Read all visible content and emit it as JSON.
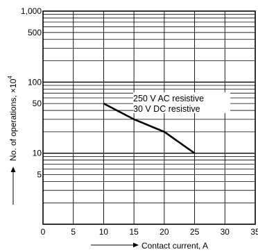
{
  "chart_data": {
    "type": "line",
    "xlabel": "Contact current, A",
    "ylabel": "No. of operations, ×10",
    "ylabel_exponent": "4",
    "xlim": [
      0,
      35
    ],
    "ylim": [
      1,
      1000
    ],
    "y_scale": "log",
    "grid": true,
    "x_ticks": [
      0,
      5,
      10,
      15,
      20,
      25,
      30,
      35
    ],
    "x_tick_labels": [
      "0",
      "5",
      "10",
      "15",
      "20",
      "25",
      "30",
      "35"
    ],
    "y_ticks": [
      5,
      10,
      50,
      100,
      500,
      1000
    ],
    "y_tick_labels": [
      "5",
      "10",
      "50",
      "100",
      "500",
      "1,000"
    ],
    "series": [
      {
        "name": "250 V AC resistive",
        "x": [
          10,
          15,
          20,
          25
        ],
        "y": [
          50,
          30,
          20,
          10
        ]
      }
    ],
    "legend_lines": [
      "250 V AC resistive",
      "30 V DC resistive"
    ]
  }
}
